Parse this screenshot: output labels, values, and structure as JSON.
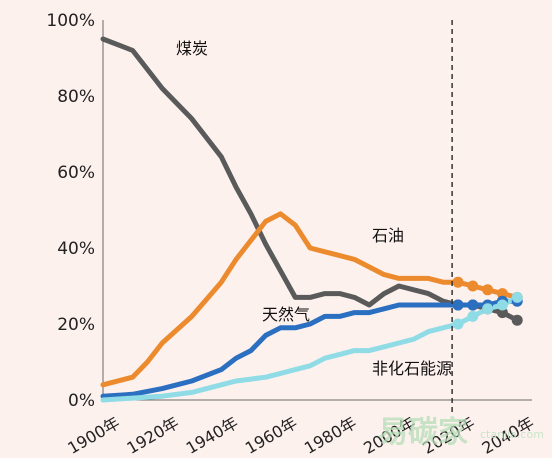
{
  "chart_data": {
    "type": "line",
    "title": "",
    "xlabel": "",
    "ylabel": "",
    "xlim": [
      1900,
      2045
    ],
    "ylim": [
      0,
      100
    ],
    "y_ticks": [
      "0%",
      "20%",
      "40%",
      "60%",
      "80%",
      "100%"
    ],
    "x_ticks": [
      "1900年",
      "1920年",
      "1940年",
      "1960年",
      "1980年",
      "2000年",
      "2020年",
      "2040年"
    ],
    "grid": false,
    "projection_start_year": 2018,
    "series": [
      {
        "name": "煤炭",
        "color": "#5a5a5a",
        "points": [
          [
            1900,
            95
          ],
          [
            1910,
            92
          ],
          [
            1915,
            87
          ],
          [
            1920,
            82
          ],
          [
            1930,
            74
          ],
          [
            1940,
            64
          ],
          [
            1945,
            56
          ],
          [
            1950,
            49
          ],
          [
            1955,
            41
          ],
          [
            1960,
            34
          ],
          [
            1965,
            27
          ],
          [
            1970,
            27
          ],
          [
            1975,
            28
          ],
          [
            1980,
            28
          ],
          [
            1985,
            27
          ],
          [
            1990,
            25
          ],
          [
            1995,
            28
          ],
          [
            2000,
            30
          ],
          [
            2005,
            29
          ],
          [
            2010,
            28
          ],
          [
            2015,
            26
          ],
          [
            2020,
            25
          ],
          [
            2025,
            25
          ],
          [
            2030,
            24
          ],
          [
            2035,
            23
          ],
          [
            2040,
            21
          ]
        ]
      },
      {
        "name": "石油",
        "color": "#ec8a2e",
        "points": [
          [
            1900,
            4
          ],
          [
            1910,
            6
          ],
          [
            1915,
            10
          ],
          [
            1920,
            15
          ],
          [
            1930,
            22
          ],
          [
            1940,
            31
          ],
          [
            1945,
            37
          ],
          [
            1950,
            42
          ],
          [
            1955,
            47
          ],
          [
            1960,
            49
          ],
          [
            1965,
            46
          ],
          [
            1970,
            40
          ],
          [
            1975,
            39
          ],
          [
            1980,
            38
          ],
          [
            1985,
            37
          ],
          [
            1990,
            35
          ],
          [
            1995,
            33
          ],
          [
            2000,
            32
          ],
          [
            2005,
            32
          ],
          [
            2010,
            32
          ],
          [
            2015,
            31
          ],
          [
            2020,
            31
          ],
          [
            2025,
            30
          ],
          [
            2030,
            29
          ],
          [
            2035,
            28
          ],
          [
            2040,
            27
          ]
        ]
      },
      {
        "name": "天然气",
        "color": "#2b6fc1",
        "points": [
          [
            1900,
            1
          ],
          [
            1910,
            1.5
          ],
          [
            1920,
            3
          ],
          [
            1930,
            5
          ],
          [
            1940,
            8
          ],
          [
            1945,
            11
          ],
          [
            1950,
            13
          ],
          [
            1955,
            17
          ],
          [
            1960,
            19
          ],
          [
            1965,
            19
          ],
          [
            1970,
            20
          ],
          [
            1975,
            22
          ],
          [
            1980,
            22
          ],
          [
            1985,
            23
          ],
          [
            1990,
            23
          ],
          [
            1995,
            24
          ],
          [
            2000,
            25
          ],
          [
            2005,
            25
          ],
          [
            2010,
            25
          ],
          [
            2015,
            25
          ],
          [
            2020,
            25
          ],
          [
            2025,
            25
          ],
          [
            2030,
            25
          ],
          [
            2035,
            26
          ],
          [
            2040,
            26
          ]
        ]
      },
      {
        "name": "非化石能源",
        "color": "#8fdbe6",
        "points": [
          [
            1900,
            0
          ],
          [
            1910,
            0.5
          ],
          [
            1920,
            1
          ],
          [
            1930,
            2
          ],
          [
            1940,
            4
          ],
          [
            1945,
            5
          ],
          [
            1950,
            5.5
          ],
          [
            1955,
            6
          ],
          [
            1960,
            7
          ],
          [
            1965,
            8
          ],
          [
            1970,
            9
          ],
          [
            1975,
            11
          ],
          [
            1980,
            12
          ],
          [
            1985,
            13
          ],
          [
            1990,
            13
          ],
          [
            1995,
            14
          ],
          [
            2000,
            15
          ],
          [
            2005,
            16
          ],
          [
            2010,
            18
          ],
          [
            2015,
            19
          ],
          [
            2020,
            20
          ],
          [
            2025,
            22
          ],
          [
            2030,
            24
          ],
          [
            2035,
            25
          ],
          [
            2040,
            27
          ]
        ]
      }
    ],
    "labels": {
      "coal": "煤炭",
      "oil": "石油",
      "gas": "天然气",
      "nonfossil": "非化石能源"
    }
  },
  "watermark": {
    "text": "易碳家",
    "sub": "ctanjia.com"
  }
}
